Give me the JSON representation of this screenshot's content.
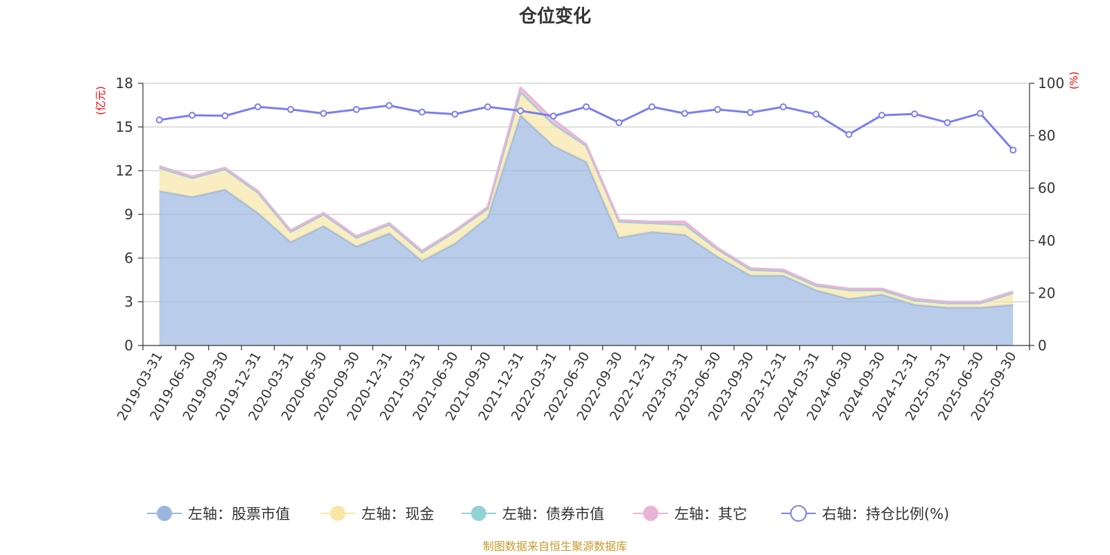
{
  "chart_data": {
    "type": "area",
    "title": "仓位变化",
    "left_axis": {
      "unit": "(亿元)",
      "ylim": [
        0,
        18
      ],
      "ticks": [
        0,
        3,
        6,
        9,
        12,
        15,
        18
      ]
    },
    "right_axis": {
      "unit": "(%)",
      "ylim": [
        0,
        100
      ],
      "ticks": [
        0,
        20,
        40,
        60,
        80,
        100
      ]
    },
    "categories": [
      "2019-03-31",
      "2019-06-30",
      "2019-09-30",
      "2019-12-31",
      "2020-03-31",
      "2020-06-30",
      "2020-09-30",
      "2020-12-31",
      "2021-03-31",
      "2021-06-30",
      "2021-09-30",
      "2021-12-31",
      "2022-03-31",
      "2022-06-30",
      "2022-09-30",
      "2022-12-31",
      "2023-03-31",
      "2023-06-30",
      "2023-09-30",
      "2023-12-31",
      "2024-03-31",
      "2024-06-30",
      "2024-09-30",
      "2024-12-31",
      "2025-03-31",
      "2025-06-30",
      "2025-09-30"
    ],
    "series": [
      {
        "name": "左轴：股票市值",
        "axis": "left",
        "color": "#9bb7e0",
        "values": [
          10.6,
          10.2,
          10.7,
          9.1,
          7.1,
          8.2,
          6.8,
          7.7,
          5.8,
          7.0,
          8.8,
          15.8,
          13.7,
          12.6,
          7.4,
          7.8,
          7.6,
          6.1,
          4.8,
          4.8,
          3.8,
          3.2,
          3.5,
          2.8,
          2.6,
          2.6,
          2.8
        ]
      },
      {
        "name": "左轴：现金",
        "axis": "left",
        "color": "#f7e6a6",
        "values": [
          1.6,
          1.3,
          1.4,
          1.4,
          0.7,
          0.8,
          0.6,
          0.6,
          0.6,
          0.8,
          0.6,
          1.6,
          1.5,
          1.1,
          1.1,
          0.6,
          0.7,
          0.5,
          0.4,
          0.3,
          0.3,
          0.6,
          0.3,
          0.3,
          0.3,
          0.3,
          0.8
        ]
      },
      {
        "name": "左轴：债券市值",
        "axis": "left",
        "color": "#93d2d4",
        "values": [
          0,
          0,
          0,
          0,
          0,
          0,
          0,
          0,
          0,
          0,
          0,
          0,
          0,
          0,
          0,
          0,
          0,
          0,
          0,
          0,
          0,
          0,
          0,
          0,
          0,
          0,
          0
        ]
      },
      {
        "name": "左轴：其它",
        "axis": "left",
        "color": "#e9b3d6",
        "values": [
          0.1,
          0.1,
          0.1,
          0.1,
          0.1,
          0.1,
          0.1,
          0.1,
          0.1,
          0.1,
          0.1,
          0.3,
          0.3,
          0.1,
          0.1,
          0.1,
          0.2,
          0.1,
          0.1,
          0.1,
          0.1,
          0.1,
          0.1,
          0.1,
          0.1,
          0.1,
          0.1
        ]
      },
      {
        "name": "右轴：持仓比例(%)",
        "axis": "right",
        "color": "#7b7ef0",
        "values": [
          86,
          87.8,
          87.6,
          91,
          90,
          88.5,
          90,
          91.5,
          89,
          88.2,
          91,
          89.5,
          87.5,
          91,
          85,
          91,
          88.5,
          90,
          88.8,
          91,
          88.2,
          80.5,
          87.8,
          88.3,
          85,
          88.5,
          74.5
        ]
      }
    ],
    "legend_position": "bottom",
    "grid": true
  },
  "source_note": "制图数据来自恒生聚源数据库"
}
